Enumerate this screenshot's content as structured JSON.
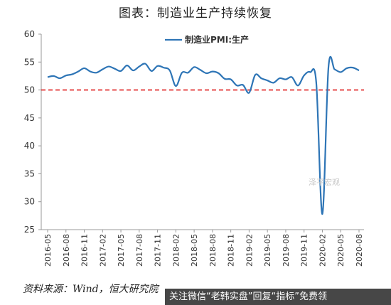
{
  "title": "图表：制造业生产持续恢复",
  "source": "资料来源：Wind，恒大研究院",
  "watermark": "关注微信“老韩实盘”回复“指标”免费领",
  "faint_text": "泽平宏观",
  "colors": {
    "line": "#2E75B6",
    "reference": "#E02020",
    "axis": "#999999",
    "text": "#333333"
  },
  "chart_data": {
    "type": "line",
    "title": "",
    "xlabel": "",
    "ylabel": "",
    "ylim": [
      25,
      60
    ],
    "yticks": [
      25,
      30,
      35,
      40,
      45,
      50,
      55,
      60
    ],
    "xtick_labels": [
      "2016-05",
      "2016-08",
      "2016-11",
      "2017-02",
      "2017-05",
      "2017-08",
      "2017-11",
      "2018-02",
      "2018-05",
      "2018-08",
      "2018-11",
      "2019-02",
      "2019-05",
      "2019-08",
      "2019-11",
      "2020-02",
      "2020-05",
      "2020-08"
    ],
    "grid": false,
    "legend": "top-center",
    "reference_line": {
      "y": 50,
      "style": "dashed",
      "color": "#E02020"
    },
    "series": [
      {
        "name": "制造业PMI:生产",
        "color": "#2E75B6",
        "x": [
          "2016-05",
          "2016-06",
          "2016-07",
          "2016-08",
          "2016-09",
          "2016-10",
          "2016-11",
          "2016-12",
          "2017-01",
          "2017-02",
          "2017-03",
          "2017-04",
          "2017-05",
          "2017-06",
          "2017-07",
          "2017-08",
          "2017-09",
          "2017-10",
          "2017-11",
          "2017-12",
          "2018-01",
          "2018-02",
          "2018-03",
          "2018-04",
          "2018-05",
          "2018-06",
          "2018-07",
          "2018-08",
          "2018-09",
          "2018-10",
          "2018-11",
          "2018-12",
          "2019-01",
          "2019-02",
          "2019-03",
          "2019-04",
          "2019-05",
          "2019-06",
          "2019-07",
          "2019-08",
          "2019-09",
          "2019-10",
          "2019-11",
          "2019-12",
          "2020-01",
          "2020-02",
          "2020-03",
          "2020-04",
          "2020-05",
          "2020-06",
          "2020-07",
          "2020-08"
        ],
        "values": [
          52.3,
          52.5,
          52.1,
          52.6,
          52.8,
          53.3,
          53.9,
          53.3,
          53.1,
          53.7,
          54.2,
          53.8,
          53.4,
          54.4,
          53.5,
          54.2,
          54.7,
          53.4,
          54.3,
          54.0,
          53.5,
          50.7,
          53.1,
          53.1,
          54.1,
          53.6,
          53.0,
          53.3,
          53.0,
          52.0,
          51.9,
          50.8,
          50.9,
          49.5,
          52.7,
          52.1,
          51.7,
          51.3,
          52.1,
          51.9,
          52.3,
          50.8,
          52.6,
          53.2,
          51.3,
          27.8,
          54.1,
          53.7,
          53.2,
          53.9,
          54.0,
          53.5
        ]
      }
    ]
  }
}
